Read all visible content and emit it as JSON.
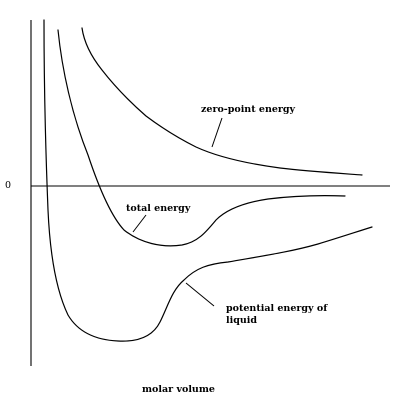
{
  "axes": {
    "zero_label": "0",
    "x_label": "molar volume"
  },
  "curves": {
    "zero_point": {
      "label": "zero-point energy"
    },
    "total": {
      "label": "total energy"
    },
    "potential": {
      "label_line1": "potential energy of",
      "label_line2": "liquid"
    }
  },
  "colors": {
    "stroke": "#000000",
    "background": "#ffffff"
  }
}
